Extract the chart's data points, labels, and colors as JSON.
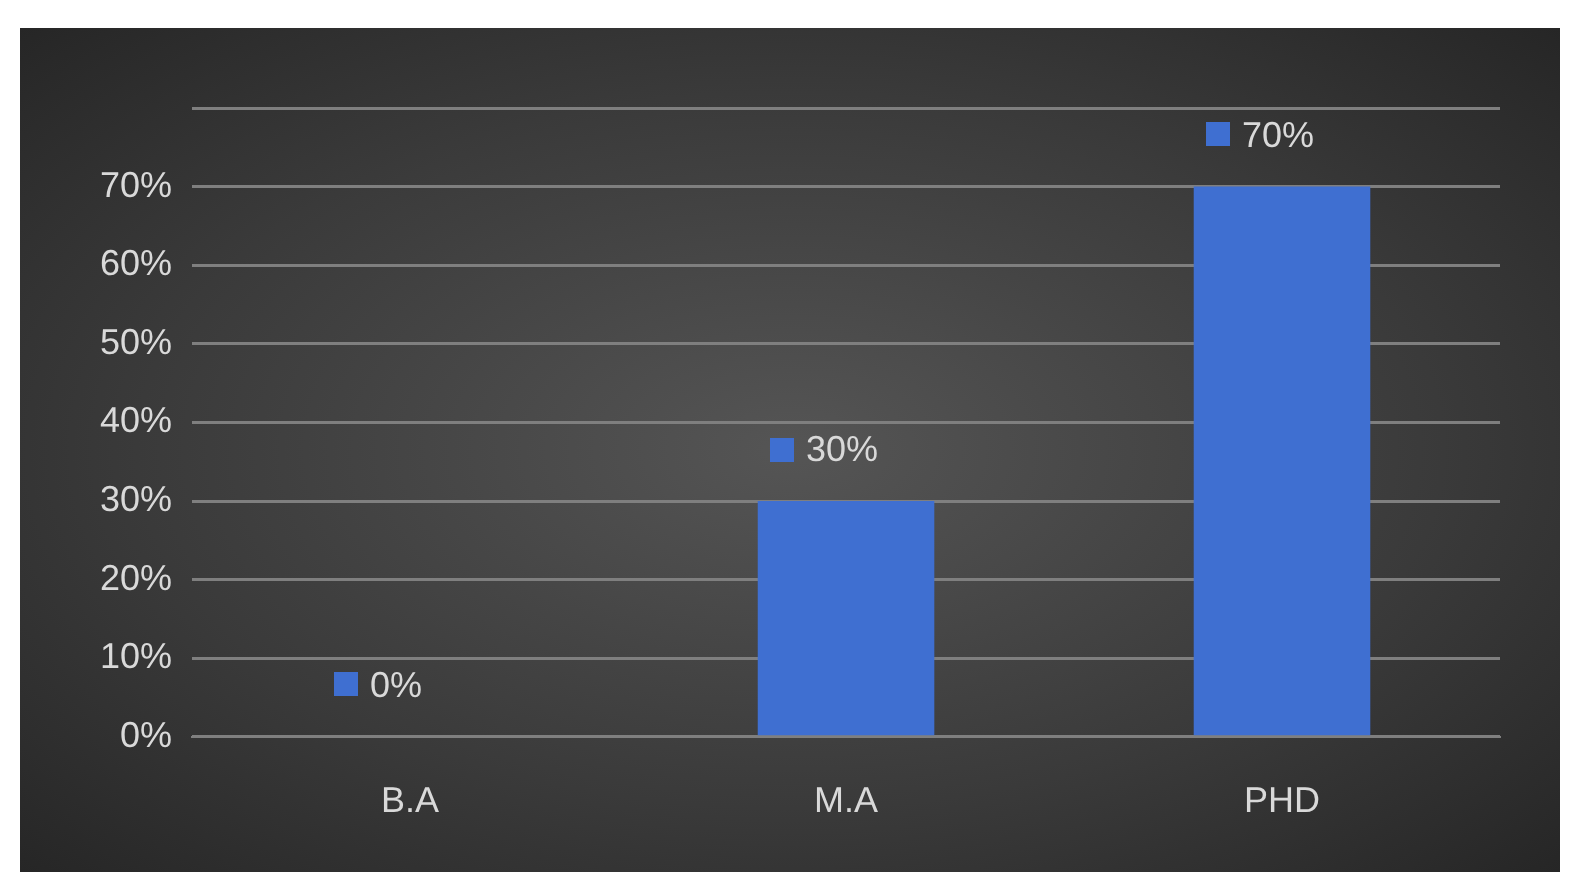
{
  "chart_data": {
    "type": "bar",
    "categories": [
      "B.A",
      "M.A",
      "PHD"
    ],
    "series": [
      {
        "color": "#3f6fd1",
        "values": [
          0,
          30,
          70
        ]
      }
    ],
    "value_labels": [
      "0%",
      "30%",
      "70%"
    ],
    "ylim": [
      0,
      80
    ],
    "yticks": [
      {
        "value": 0,
        "label": "0%"
      },
      {
        "value": 10,
        "label": "10%"
      },
      {
        "value": 20,
        "label": "20%"
      },
      {
        "value": 30,
        "label": "30%"
      },
      {
        "value": 40,
        "label": "40%"
      },
      {
        "value": 50,
        "label": "50%"
      },
      {
        "value": 60,
        "label": "60%"
      },
      {
        "value": 70,
        "label": "70%"
      },
      {
        "value": 80,
        "label": null
      }
    ],
    "grid": "y",
    "legend": false
  }
}
